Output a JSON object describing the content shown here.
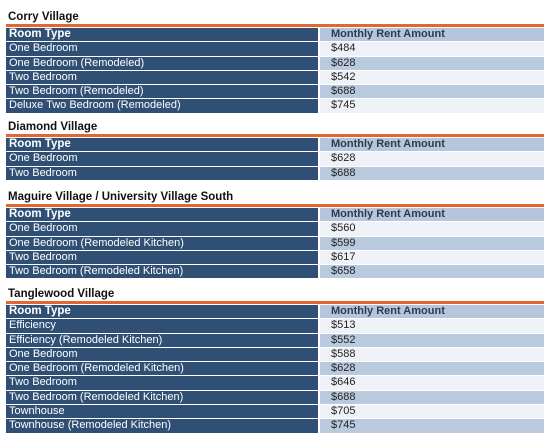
{
  "header_room_type": "Room Type",
  "header_rent": "Monthly Rent Amount",
  "sections": [
    {
      "title": "Corry Village",
      "rows": [
        {
          "room": "One Bedroom",
          "rent": "$484"
        },
        {
          "room": "One Bedroom (Remodeled)",
          "rent": "$628"
        },
        {
          "room": "Two Bedroom",
          "rent": "$542"
        },
        {
          "room": "Two Bedroom (Remodeled)",
          "rent": "$688"
        },
        {
          "room": "Deluxe Two Bedroom (Remodeled)",
          "rent": "$745"
        }
      ]
    },
    {
      "title": "Diamond Village",
      "rows": [
        {
          "room": "One Bedroom",
          "rent": "$628"
        },
        {
          "room": "Two Bedroom",
          "rent": "$688"
        }
      ]
    },
    {
      "title": "Maguire Village / University Village South",
      "rows": [
        {
          "room": "One Bedroom",
          "rent": "$560"
        },
        {
          "room": "One Bedroom (Remodeled Kitchen)",
          "rent": "$599"
        },
        {
          "room": "Two Bedroom",
          "rent": "$617"
        },
        {
          "room": "Two Bedroom (Remodeled Kitchen)",
          "rent": "$658"
        }
      ]
    },
    {
      "title": "Tanglewood Village",
      "rows": [
        {
          "room": "Efficiency",
          "rent": "$513"
        },
        {
          "room": "Efficiency (Remodeled Kitchen)",
          "rent": "$552"
        },
        {
          "room": "One Bedroom",
          "rent": "$588"
        },
        {
          "room": "One Bedroom (Remodeled Kitchen)",
          "rent": "$628"
        },
        {
          "room": "Two Bedroom",
          "rent": "$646"
        },
        {
          "room": "Two Bedroom (Remodeled Kitchen)",
          "rent": "$688"
        },
        {
          "room": "Townhouse",
          "rent": "$705"
        },
        {
          "room": "Townhouse (Remodeled Kitchen)",
          "rent": "$745"
        }
      ]
    }
  ]
}
